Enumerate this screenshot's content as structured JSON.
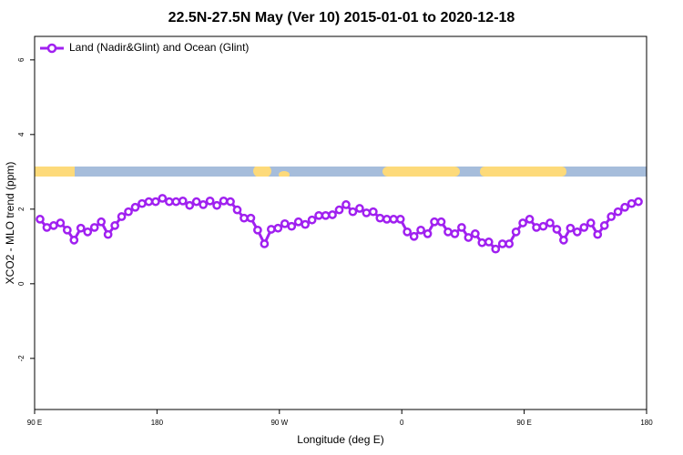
{
  "chart_data": {
    "type": "line",
    "title": "22.5N-27.5N May (Ver 10)   2015-01-01 to 2020-12-18",
    "x_label": "Longitude (deg E)",
    "y_label": "XCO2 - MLO trend (ppm)",
    "xlim": [
      90,
      540
    ],
    "xticks": [
      {
        "value": 90,
        "label": "90 E"
      },
      180,
      {
        "value": 270,
        "label": "90 W"
      },
      {
        "value": 360,
        "label": "0"
      },
      {
        "value": 450,
        "label": "90 E"
      },
      {
        "value": 540,
        "label": "180"
      }
    ],
    "ylim": [
      -3.37,
      6.63
    ],
    "yticks": [
      -2,
      0,
      2,
      4,
      6
    ],
    "grid": false,
    "legend": "top-left",
    "x": [
      94,
      99,
      104,
      109,
      114,
      119,
      124,
      129,
      134,
      139,
      144,
      149,
      154,
      159,
      164,
      169,
      174,
      179,
      184,
      189,
      194,
      199,
      204,
      209,
      214,
      219,
      224,
      229,
      234,
      239,
      244,
      249,
      254,
      259,
      264,
      269,
      274,
      279,
      284,
      289,
      294,
      299,
      304,
      309,
      314,
      319,
      324,
      329,
      334,
      339,
      344,
      349,
      354,
      359,
      364,
      369,
      374,
      379,
      384,
      389,
      394,
      399,
      404,
      409,
      414,
      419,
      424,
      429,
      434,
      439,
      444,
      449,
      454,
      459,
      464,
      469,
      474,
      479,
      484,
      489,
      494,
      499,
      504,
      509,
      514,
      519,
      524,
      529,
      534
    ],
    "series": [
      {
        "name": "Land (Nadir&Glint) and Ocean (Glint)",
        "color": "#a020f0",
        "values": [
          1.73,
          1.51,
          1.56,
          1.63,
          1.44,
          1.17,
          1.49,
          1.39,
          1.51,
          1.66,
          1.32,
          1.56,
          1.8,
          1.93,
          2.05,
          2.15,
          2.2,
          2.2,
          2.29,
          2.2,
          2.2,
          2.22,
          2.1,
          2.2,
          2.12,
          2.22,
          2.1,
          2.22,
          2.2,
          1.98,
          1.76,
          1.76,
          1.44,
          1.07,
          1.46,
          1.49,
          1.61,
          1.54,
          1.66,
          1.59,
          1.71,
          1.83,
          1.83,
          1.85,
          1.98,
          2.12,
          1.93,
          2.02,
          1.9,
          1.93,
          1.76,
          1.73,
          1.73,
          1.73,
          1.39,
          1.27,
          1.44,
          1.34,
          1.66,
          1.66,
          1.39,
          1.34,
          1.51,
          1.24,
          1.34,
          1.1,
          1.12,
          0.93,
          1.07,
          1.07,
          1.39,
          1.63,
          1.73,
          1.51,
          1.54,
          1.63,
          1.46,
          1.17,
          1.49,
          1.39,
          1.51,
          1.63,
          1.32,
          1.56,
          1.8,
          1.93,
          2.05,
          2.15,
          2.2
        ]
      }
    ]
  }
}
